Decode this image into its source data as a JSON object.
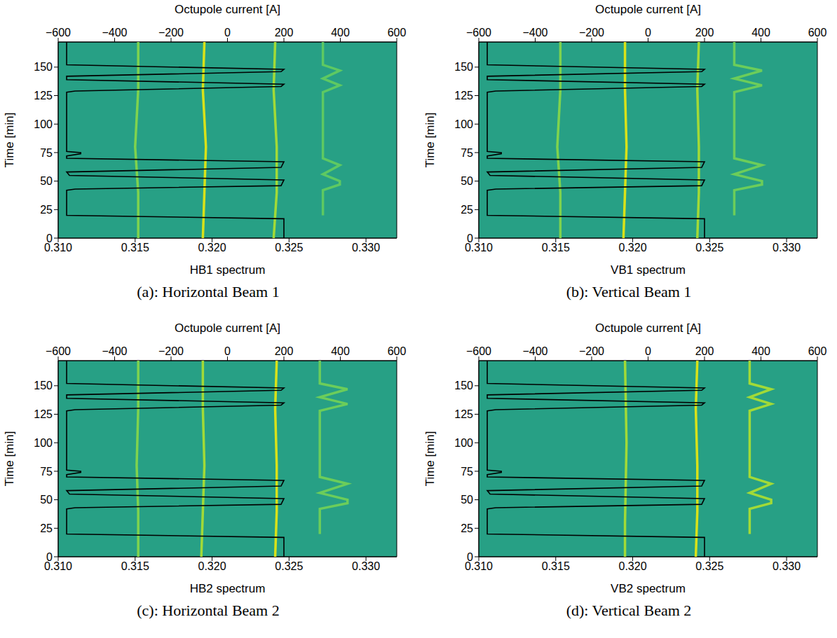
{
  "chart_data": [
    {
      "type": "line",
      "title": "(a): Horizontal Beam 1",
      "x_label": "HB1 spectrum",
      "x2_label": "Octupole current [A]",
      "y_label": "Time [min]",
      "xlim": [
        0.31,
        0.332
      ],
      "xticks": [
        {
          "value": 0.31,
          "label": "0.310"
        },
        0.315,
        {
          "value": 0.32,
          "label": "0.320"
        },
        0.325,
        {
          "value": 0.33,
          "label": "0.330"
        }
      ],
      "x2lim": [
        -600,
        600
      ],
      "x2ticks": [
        {
          "value": -600,
          "label": "−600"
        },
        {
          "value": -400,
          "label": "−400"
        },
        {
          "value": -200,
          "label": "−200"
        },
        0,
        200,
        400,
        600
      ],
      "ylim": [
        0,
        172
      ],
      "yticks": [
        0,
        25,
        50,
        75,
        100,
        125,
        150
      ],
      "series": [
        {
          "color": "#7fd34e",
          "x": [
            0.3152,
            0.3152,
            0.315,
            0.3152,
            0.3152
          ],
          "y": [
            0,
            40,
            80,
            130,
            172
          ]
        },
        {
          "color": "#d8e219",
          "x": [
            0.3194,
            0.3195,
            0.3196,
            0.3194,
            0.3195
          ],
          "y": [
            0,
            40,
            80,
            130,
            172
          ]
        },
        {
          "color": "#a2da37",
          "x": [
            0.324,
            0.3242,
            0.3242,
            0.324,
            0.3241
          ],
          "y": [
            0,
            40,
            80,
            130,
            172
          ]
        },
        {
          "color": "#5ec962",
          "x": [
            0.3272,
            0.3272,
            0.3283,
            0.3283,
            0.3272,
            0.3283,
            0.3272,
            0.3272,
            0.3283,
            0.3272,
            0.3283,
            0.3272,
            0.3272
          ],
          "y": [
            20,
            42,
            47,
            50,
            56,
            64,
            70,
            128,
            134,
            140,
            147,
            152,
            172
          ]
        },
        {
          "color": "#000000",
          "axis": "x2",
          "x": [
            200,
            200,
            -570,
            -570,
            -540,
            190,
            200,
            -560,
            -570,
            190,
            200,
            -570,
            -570,
            -520,
            -520,
            -570,
            -570,
            -540,
            190,
            200,
            -570,
            -570,
            190,
            200,
            -570,
            -570
          ],
          "y": [
            0,
            17,
            20,
            42,
            43,
            46,
            51,
            55,
            58,
            62,
            67,
            70,
            72,
            74,
            75,
            76,
            128,
            129,
            133,
            135,
            139,
            142,
            146,
            148,
            152,
            172
          ]
        }
      ]
    },
    {
      "type": "line",
      "title": "(b): Vertical Beam 1",
      "x_label": "VB1 spectrum",
      "x2_label": "Octupole current [A]",
      "y_label": "Time [min]",
      "xlim": [
        0.31,
        0.332
      ],
      "xticks": [
        {
          "value": 0.31,
          "label": "0.310"
        },
        0.315,
        {
          "value": 0.32,
          "label": "0.320"
        },
        0.325,
        {
          "value": 0.33,
          "label": "0.330"
        }
      ],
      "x2lim": [
        -600,
        600
      ],
      "x2ticks": [
        {
          "value": -600,
          "label": "−600"
        },
        {
          "value": -400,
          "label": "−400"
        },
        {
          "value": -200,
          "label": "−200"
        },
        0,
        200,
        400,
        600
      ],
      "ylim": [
        0,
        172
      ],
      "yticks": [
        0,
        25,
        50,
        75,
        100,
        125,
        150
      ],
      "series": [
        {
          "color": "#7fd34e",
          "x": [
            0.3153,
            0.3153,
            0.3151,
            0.3153,
            0.3153
          ],
          "y": [
            0,
            40,
            80,
            130,
            172
          ]
        },
        {
          "color": "#d8e219",
          "x": [
            0.3194,
            0.3195,
            0.3196,
            0.3195,
            0.3195
          ],
          "y": [
            0,
            40,
            80,
            130,
            172
          ]
        },
        {
          "color": "#a2da37",
          "x": [
            0.3242,
            0.3243,
            0.3243,
            0.3242,
            0.3243
          ],
          "y": [
            0,
            40,
            80,
            130,
            172
          ]
        },
        {
          "color": "#6ccd5a",
          "x": [
            0.3266,
            0.3266,
            0.3284,
            0.3284,
            0.3266,
            0.3284,
            0.3266,
            0.3266,
            0.3284,
            0.3266,
            0.3284,
            0.3266,
            0.3266
          ],
          "y": [
            20,
            42,
            47,
            50,
            56,
            64,
            70,
            128,
            134,
            140,
            147,
            152,
            172
          ]
        },
        {
          "color": "#000000",
          "axis": "x2",
          "x": [
            200,
            200,
            -570,
            -570,
            -540,
            190,
            200,
            -560,
            -570,
            190,
            200,
            -570,
            -570,
            -520,
            -520,
            -570,
            -570,
            -540,
            190,
            200,
            -570,
            -570,
            190,
            200,
            -570,
            -570
          ],
          "y": [
            0,
            17,
            20,
            42,
            43,
            46,
            51,
            55,
            58,
            62,
            67,
            70,
            72,
            74,
            75,
            76,
            128,
            129,
            133,
            135,
            139,
            142,
            146,
            148,
            152,
            172
          ]
        }
      ]
    },
    {
      "type": "line",
      "title": "(c): Horizontal Beam 2",
      "x_label": "HB2 spectrum",
      "x2_label": "Octupole current [A]",
      "y_label": "Time [min]",
      "xlim": [
        0.31,
        0.332
      ],
      "xticks": [
        {
          "value": 0.31,
          "label": "0.310"
        },
        0.315,
        {
          "value": 0.32,
          "label": "0.320"
        },
        0.325,
        {
          "value": 0.33,
          "label": "0.330"
        }
      ],
      "x2lim": [
        -600,
        600
      ],
      "x2ticks": [
        {
          "value": -600,
          "label": "−600"
        },
        {
          "value": -400,
          "label": "−400"
        },
        {
          "value": -200,
          "label": "−200"
        },
        0,
        200,
        400,
        600
      ],
      "ylim": [
        0,
        172
      ],
      "yticks": [
        0,
        25,
        50,
        75,
        100,
        125,
        150
      ],
      "series": [
        {
          "color": "#7fd34e",
          "x": [
            0.3152,
            0.3152,
            0.3151,
            0.3152,
            0.3152
          ],
          "y": [
            0,
            40,
            80,
            130,
            172
          ]
        },
        {
          "color": "#a2da37",
          "x": [
            0.3193,
            0.3194,
            0.3195,
            0.3194,
            0.3194
          ],
          "y": [
            0,
            40,
            80,
            130,
            172
          ]
        },
        {
          "color": "#d8e219",
          "x": [
            0.3241,
            0.3242,
            0.3242,
            0.3241,
            0.3242
          ],
          "y": [
            0,
            40,
            80,
            130,
            172
          ]
        },
        {
          "color": "#6ccd5a",
          "x": [
            0.327,
            0.327,
            0.3288,
            0.3288,
            0.327,
            0.3288,
            0.327,
            0.327,
            0.3288,
            0.327,
            0.3288,
            0.327,
            0.327
          ],
          "y": [
            20,
            42,
            47,
            50,
            56,
            64,
            70,
            128,
            134,
            140,
            147,
            152,
            172
          ]
        },
        {
          "color": "#000000",
          "axis": "x2",
          "x": [
            200,
            200,
            -570,
            -570,
            -540,
            190,
            200,
            -560,
            -570,
            190,
            200,
            -570,
            -570,
            -520,
            -520,
            -570,
            -570,
            -540,
            190,
            200,
            -570,
            -570,
            190,
            200,
            -570,
            -570
          ],
          "y": [
            0,
            17,
            20,
            42,
            43,
            46,
            51,
            55,
            58,
            62,
            67,
            70,
            72,
            74,
            75,
            76,
            128,
            129,
            133,
            135,
            139,
            142,
            146,
            148,
            152,
            172
          ]
        }
      ]
    },
    {
      "type": "line",
      "title": "(d): Vertical Beam 2",
      "x_label": "VB2 spectrum",
      "x2_label": "Octupole current [A]",
      "y_label": "Time [min]",
      "xlim": [
        0.31,
        0.332
      ],
      "xticks": [
        {
          "value": 0.31,
          "label": "0.310"
        },
        0.315,
        {
          "value": 0.32,
          "label": "0.320"
        },
        0.325,
        {
          "value": 0.33,
          "label": "0.330"
        }
      ],
      "x2lim": [
        -600,
        600
      ],
      "x2ticks": [
        {
          "value": -600,
          "label": "−600"
        },
        {
          "value": -400,
          "label": "−400"
        },
        {
          "value": -200,
          "label": "−200"
        },
        0,
        200,
        400,
        600
      ],
      "ylim": [
        0,
        172
      ],
      "yticks": [
        0,
        25,
        50,
        75,
        100,
        125,
        150
      ],
      "series": [
        {
          "color": "#a2da37",
          "x": [
            0.3195,
            0.3195,
            0.3196,
            0.3195
          ],
          "y": [
            0,
            30,
            100,
            172
          ]
        },
        {
          "color": "#d8e219",
          "x": [
            0.3241,
            0.3242,
            0.3242,
            0.3241,
            0.3242
          ],
          "y": [
            0,
            40,
            80,
            130,
            172
          ]
        },
        {
          "color": "#a2da37",
          "x": [
            0.3276,
            0.3276,
            0.329,
            0.329,
            0.3276,
            0.329,
            0.3276,
            0.3276,
            0.329,
            0.3276,
            0.329,
            0.3276,
            0.3276
          ],
          "y": [
            20,
            42,
            47,
            50,
            56,
            64,
            70,
            128,
            134,
            140,
            147,
            152,
            172
          ]
        },
        {
          "color": "#000000",
          "axis": "x2",
          "x": [
            200,
            200,
            -570,
            -570,
            -540,
            190,
            200,
            -560,
            -570,
            190,
            200,
            -570,
            -570,
            -520,
            -520,
            -570,
            -570,
            -540,
            190,
            200,
            -570,
            -570,
            190,
            200,
            -570,
            -570
          ],
          "y": [
            0,
            17,
            20,
            42,
            43,
            46,
            51,
            55,
            58,
            62,
            67,
            70,
            72,
            74,
            75,
            76,
            128,
            129,
            133,
            135,
            139,
            142,
            146,
            148,
            152,
            172
          ]
        }
      ]
    }
  ]
}
